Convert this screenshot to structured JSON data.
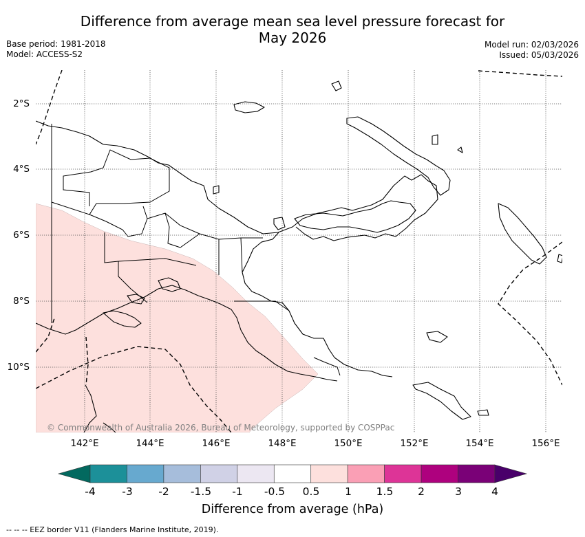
{
  "title": {
    "line1": "Difference from average mean sea level pressure forecast for",
    "line2": "May 2026"
  },
  "meta_left": {
    "base_period": "Base period: 1981-2018",
    "model": "Model: ACCESS-S2"
  },
  "meta_right": {
    "model_run": "Model run: 02/03/2026",
    "issued": "Issued: 05/03/2026"
  },
  "map": {
    "latitude_labels": [
      "2°S",
      "4°S",
      "6°S",
      "8°S",
      "10°S"
    ],
    "longitude_labels": [
      "142°E",
      "144°E",
      "146°E",
      "148°E",
      "150°E",
      "152°E",
      "154°E",
      "156°E"
    ],
    "copyright": "© Commonwealth of Australia 2026, Bureau of Meteorology, supported by COSPPac",
    "shaded_anomaly_bin": "0.5 to 1",
    "shaded_region_color": "#fde0dd",
    "border_color": "#000000"
  },
  "colorbar": {
    "ticks": [
      "-4",
      "-3",
      "-2",
      "-1.5",
      "-1",
      "-0.5",
      "0.5",
      "1",
      "1.5",
      "2",
      "3",
      "4"
    ],
    "colors": [
      "#03695f",
      "#1c9099",
      "#67a9cf",
      "#a6bddb",
      "#d0d1e6",
      "#ece7f2",
      "#ffffff",
      "#fde0dd",
      "#fa9fb5",
      "#dd3497",
      "#ae017e",
      "#7a0177",
      "#49006a"
    ],
    "label": "Difference from average (hPa)"
  },
  "footnote": "--  --  -- EEZ border V11 (Flanders Marine Institute, 2019)."
}
